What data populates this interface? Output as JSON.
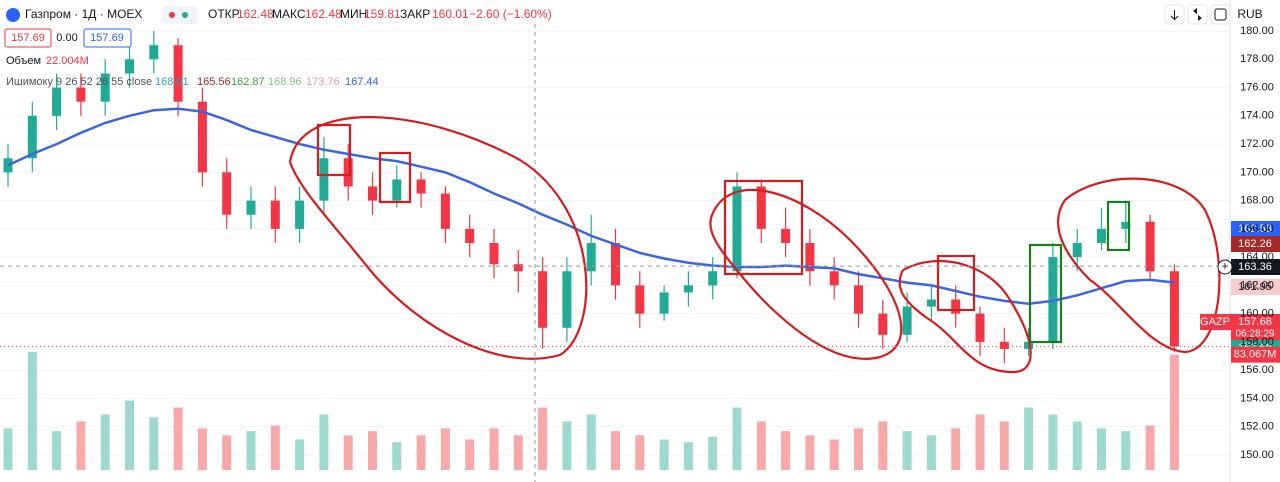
{
  "header": {
    "symbol": "Газпром · 1Д · MOEX",
    "open_label": "ОТКР",
    "open": "162.48",
    "high_label": "МАКС",
    "high": "162.48",
    "low_label": "МИН",
    "low": "159.81",
    "close_label": "ЗАКР",
    "close": "160.01",
    "change": "−2.60 (−1.60%)",
    "currency": "RUB"
  },
  "legend": {
    "bid": "157.69",
    "spread": "0.00",
    "ask": "157.69",
    "volume_label": "Объем",
    "volume": "22.004M",
    "ichimoku_label": "Ишимоку 9 26 52 26 55 close",
    "ichimoku_values": [
      {
        "text": "168.01",
        "color": "#26a6c9"
      },
      {
        "text": "165.56",
        "color": "#a52a2a"
      },
      {
        "text": "162.87",
        "color": "#43a047"
      },
      {
        "text": "168.96",
        "color": "#81c784"
      },
      {
        "text": "173.76",
        "color": "#ef9a9a"
      },
      {
        "text": "167.44",
        "color": "#2962ff"
      }
    ]
  },
  "chart_data": {
    "type": "candlestick",
    "up_color": "#22ab94",
    "down_color": "#f23645",
    "grid": true,
    "ylim": [
      149.5,
      180.5
    ],
    "yticks": [
      {
        "value": 150,
        "label": "150.00"
      },
      {
        "value": 152,
        "label": "152.00"
      },
      {
        "value": 154,
        "label": "154.00"
      },
      {
        "value": 156,
        "label": "156.00"
      },
      {
        "value": 158,
        "label": "158.00"
      },
      {
        "value": 160,
        "label": "160.00"
      },
      {
        "value": 162,
        "label": "162.00"
      },
      {
        "value": 164,
        "label": "164.00"
      },
      {
        "value": 166,
        "label": "166.00"
      },
      {
        "value": 168,
        "label": "168.00"
      },
      {
        "value": 170,
        "label": "170.00"
      },
      {
        "value": 172,
        "label": "172.00"
      },
      {
        "value": 174,
        "label": "174.00"
      },
      {
        "value": 176,
        "label": "176.00"
      },
      {
        "value": 178,
        "label": "178.00"
      },
      {
        "value": 180,
        "label": "180.00"
      }
    ],
    "open": [
      170,
      171,
      174,
      176,
      175,
      177,
      178,
      179,
      175,
      170,
      167,
      168,
      166,
      168,
      171,
      169,
      168,
      169.5,
      168.5,
      166,
      165,
      163.5,
      163,
      159,
      163,
      165,
      162,
      160,
      161.5,
      162,
      163,
      169,
      166,
      165,
      163,
      162,
      160,
      158.5,
      160.5,
      161,
      160,
      158,
      157.5,
      158,
      164,
      165,
      166,
      166.5,
      163
    ],
    "high": [
      172,
      175,
      177,
      177,
      178,
      179,
      180,
      179.5,
      176,
      171,
      169,
      169,
      169,
      172.5,
      172,
      170,
      170.5,
      170,
      169,
      167,
      166,
      164.5,
      164,
      164,
      167,
      166,
      163,
      162,
      163,
      164,
      170,
      169.5,
      167.5,
      166,
      164,
      163,
      161,
      161.5,
      162,
      162,
      160.5,
      159,
      159,
      165,
      166,
      167.5,
      168,
      167,
      163.5
    ],
    "low": [
      169,
      170,
      173,
      174,
      174,
      176,
      177,
      174,
      169,
      166,
      166,
      165,
      165,
      167,
      168,
      167,
      167.5,
      167.5,
      165,
      164,
      162.5,
      161.5,
      157.5,
      158,
      162,
      161,
      159,
      159.5,
      160.5,
      161,
      162.5,
      165,
      164,
      162,
      161,
      159,
      157.5,
      158,
      159.5,
      159,
      157,
      156.5,
      157,
      157.5,
      163,
      164.5,
      165,
      162.5,
      157.3
    ],
    "close": [
      171,
      174,
      176,
      175,
      177,
      178,
      179,
      175,
      170,
      167,
      168,
      166,
      168,
      171,
      169,
      168,
      169.5,
      168.5,
      166,
      165,
      163.5,
      163,
      159,
      163,
      165,
      162,
      160,
      161.5,
      162,
      163,
      169,
      166,
      165,
      163,
      162,
      160,
      158.5,
      160.5,
      161,
      160,
      158,
      157.5,
      158,
      164,
      165,
      166,
      166.5,
      163,
      157.68
    ],
    "ma": {
      "color": "#3a66e0",
      "values": [
        170.5,
        171.3,
        172,
        172.8,
        173.5,
        174,
        174.4,
        174.5,
        174.3,
        173.7,
        173,
        172.5,
        172,
        171.6,
        171.3,
        171,
        170.8,
        170.4,
        170,
        169.3,
        168.5,
        167.8,
        167,
        166.3,
        165.5,
        164.9,
        164.3,
        163.9,
        163.6,
        163.4,
        163.3,
        163.3,
        163.4,
        163.3,
        163.2,
        162.8,
        162.5,
        162.2,
        162,
        161.6,
        161.2,
        160.9,
        160.7,
        160.9,
        161.3,
        161.8,
        162.3,
        162.4,
        162.2
      ]
    },
    "volume": {
      "up_color": "#9fd8cf",
      "down_color": "#f7a9a9",
      "last_label": "83.067M",
      "values": [
        30,
        85,
        28,
        35,
        40,
        50,
        38,
        45,
        30,
        25,
        28,
        32,
        22,
        40,
        25,
        28,
        20,
        25,
        30,
        22,
        30,
        25,
        45,
        35,
        40,
        28,
        25,
        22,
        20,
        24,
        45,
        35,
        28,
        25,
        22,
        30,
        35,
        28,
        25,
        30,
        40,
        35,
        45,
        40,
        35,
        30,
        28,
        32,
        83.067
      ]
    },
    "markers": [
      {
        "label": "162.58",
        "value": 162.58,
        "color": "#2962ff",
        "text_color": "#ffffff"
      },
      {
        "label": "162.26",
        "value": 162.26,
        "color": "#a52a2a",
        "text_color": "#ffffff"
      },
      {
        "label": "163.36",
        "value": 163.36,
        "color": "#131722",
        "text_color": "#ffffff"
      },
      {
        "label": "161.95",
        "value": 161.95,
        "color": "#f9cccc",
        "text_color": "#131722"
      },
      {
        "label": "157.68",
        "value": 157.68,
        "color": "#f23645",
        "text_color": "#ffffff",
        "symbol": "GAZP",
        "time": "06:28:29"
      },
      {
        "label": "157.68",
        "value": 157.68,
        "color": "#22ab94",
        "text_color": "#ffffff"
      }
    ]
  }
}
